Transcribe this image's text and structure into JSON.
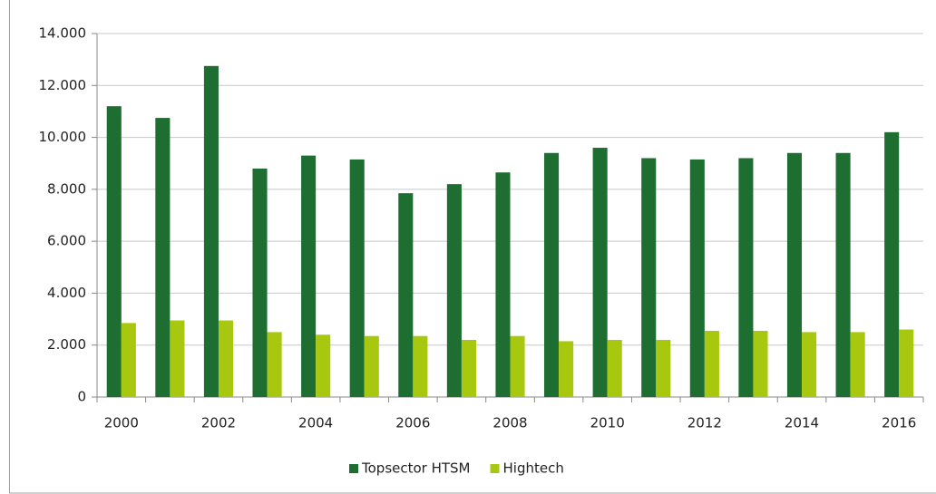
{
  "chart_data": {
    "type": "bar",
    "categories": [
      "2000",
      null,
      "2002",
      null,
      "2004",
      null,
      "2006",
      null,
      "2008",
      null,
      "2010",
      null,
      "2012",
      null,
      "2014",
      null,
      "2016"
    ],
    "series": [
      {
        "name": "Topsector HTSM",
        "color": "#1e6e32",
        "values": [
          11200,
          10750,
          12750,
          8800,
          9300,
          9150,
          7850,
          8200,
          8650,
          9400,
          9600,
          9200,
          9150,
          9200,
          9400,
          9400,
          10200
        ]
      },
      {
        "name": "Hightech",
        "color": "#a8c810",
        "values": [
          2850,
          2950,
          2950,
          2500,
          2400,
          2350,
          2350,
          2200,
          2350,
          2150,
          2200,
          2200,
          2550,
          2550,
          2500,
          2500,
          2600
        ]
      }
    ],
    "ylim": [
      0,
      14000
    ],
    "yticks": [
      0,
      {
        "value": 2000,
        "label": "2.000"
      },
      {
        "value": 4000,
        "label": "4.000"
      },
      {
        "value": 6000,
        "label": "6.000"
      },
      {
        "value": 8000,
        "label": "8.000"
      },
      {
        "value": 10000,
        "label": "10.000"
      },
      {
        "value": 12000,
        "label": "12.000"
      },
      {
        "value": 14000,
        "label": "14.000"
      }
    ],
    "grid": true,
    "legend": "bottom"
  }
}
